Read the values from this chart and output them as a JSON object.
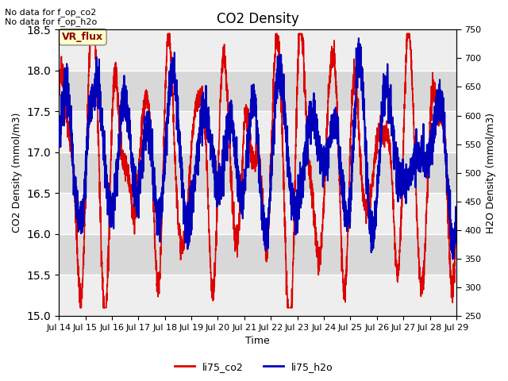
{
  "title": "CO2 Density",
  "xlabel": "Time",
  "ylabel_left": "CO2 Density (mmol/m3)",
  "ylabel_right": "H2O Density (mmol/m3)",
  "text_top_left": "No data for f_op_co2\nNo data for f_op_h2o",
  "vr_flux_label": "VR_flux",
  "legend_entries": [
    "li75_co2",
    "li75_h2o"
  ],
  "legend_colors": [
    "#dd0000",
    "#0000bb"
  ],
  "ylim_left": [
    15.0,
    18.5
  ],
  "ylim_right": [
    250,
    750
  ],
  "yticks_left": [
    15.0,
    15.5,
    16.0,
    16.5,
    17.0,
    17.5,
    18.0,
    18.5
  ],
  "yticks_right": [
    250,
    300,
    350,
    400,
    450,
    500,
    550,
    600,
    650,
    700,
    750
  ],
  "xtick_labels": [
    "Jul 14",
    "Jul 15",
    "Jul 16",
    "Jul 17",
    "Jul 18",
    "Jul 19",
    "Jul 20",
    "Jul 21",
    "Jul 22",
    "Jul 23",
    "Jul 24",
    "Jul 25",
    "Jul 26",
    "Jul 27",
    "Jul 28",
    "Jul 29"
  ],
  "n_points": 3600,
  "bg_color": "#ffffff",
  "plot_bg_color": "#e8e8e8",
  "band_color_light": "#eeeeee",
  "band_color_dark": "#d8d8d8",
  "grid_color": "#ffffff",
  "co2_color": "#dd0000",
  "h2o_color": "#0000bb",
  "linewidth_co2": 1.2,
  "linewidth_h2o": 1.5
}
